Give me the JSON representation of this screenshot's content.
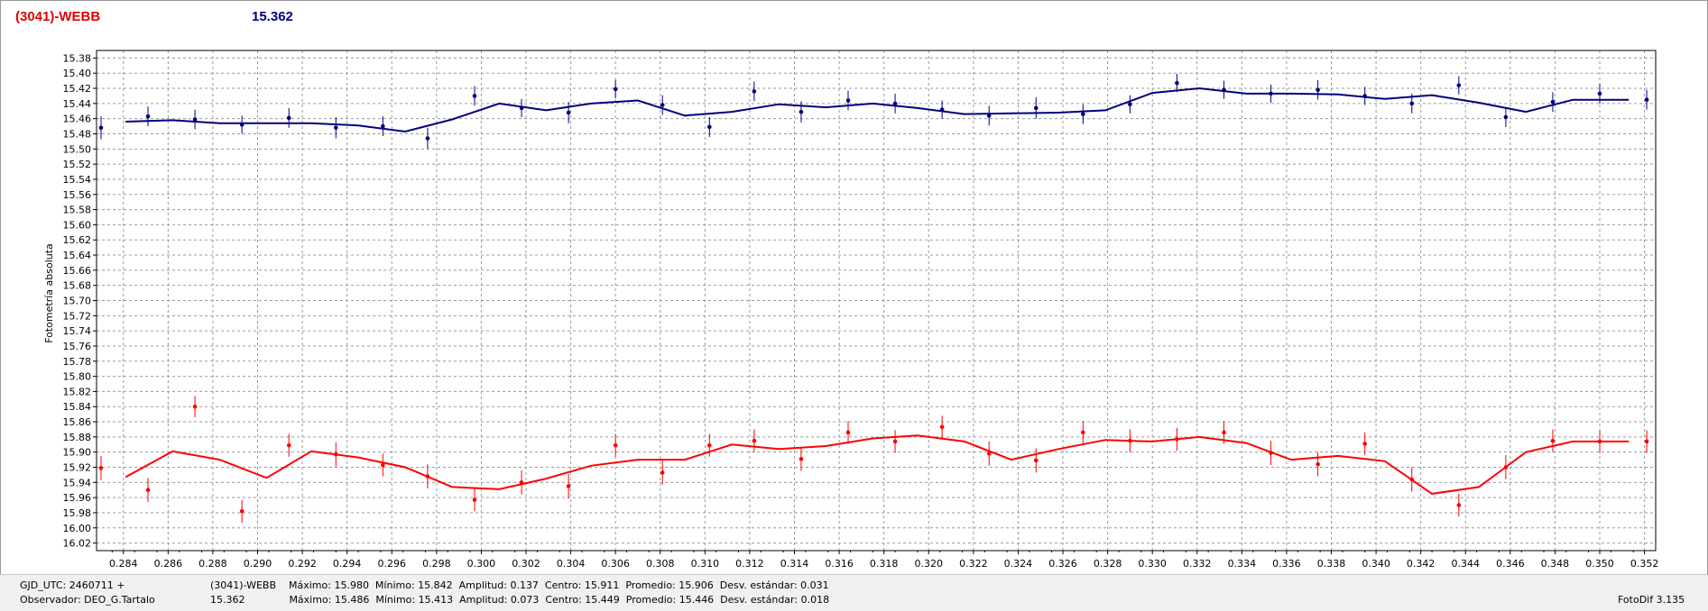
{
  "header": {
    "left_title": "(3041)-WEBB",
    "right_title": "15.362",
    "left_color": "#e00000",
    "right_color": "#00007f"
  },
  "chart_data": {
    "type": "scatter",
    "ylabel": "Fotometría absoluta",
    "xlim": [
      0.2828,
      0.3525
    ],
    "ylim": [
      16.03,
      15.37
    ],
    "y_reversed": true,
    "grid": true,
    "x_ticks": [
      "0.284",
      "0.286",
      "0.288",
      "0.290",
      "0.292",
      "0.294",
      "0.296",
      "0.298",
      "0.300",
      "0.302",
      "0.304",
      "0.306",
      "0.308",
      "0.310",
      "0.312",
      "0.314",
      "0.316",
      "0.318",
      "0.320",
      "0.322",
      "0.324",
      "0.326",
      "0.328",
      "0.330",
      "0.332",
      "0.334",
      "0.336",
      "0.338",
      "0.340",
      "0.342",
      "0.344",
      "0.346",
      "0.348",
      "0.350",
      "0.352"
    ],
    "y_ticks": [
      "15.38",
      "15.40",
      "15.42",
      "15.44",
      "15.46",
      "15.48",
      "15.50",
      "15.52",
      "15.54",
      "15.56",
      "15.58",
      "15.60",
      "15.62",
      "15.64",
      "15.66",
      "15.68",
      "15.70",
      "15.72",
      "15.74",
      "15.76",
      "15.78",
      "15.80",
      "15.82",
      "15.84",
      "15.86",
      "15.88",
      "15.90",
      "15.92",
      "15.94",
      "15.96",
      "15.98",
      "16.00",
      "16.02"
    ],
    "series": [
      {
        "color": "#00007f",
        "points": [
          [
            0.283,
            15.472,
            0.015
          ],
          [
            0.2851,
            15.457,
            0.013
          ],
          [
            0.2872,
            15.461,
            0.013
          ],
          [
            0.2893,
            15.468,
            0.012
          ],
          [
            0.2914,
            15.459,
            0.013
          ],
          [
            0.2935,
            15.472,
            0.014
          ],
          [
            0.2956,
            15.47,
            0.013
          ],
          [
            0.2976,
            15.486,
            0.014
          ],
          [
            0.2997,
            15.43,
            0.013
          ],
          [
            0.3018,
            15.446,
            0.012
          ],
          [
            0.3039,
            15.452,
            0.014
          ],
          [
            0.306,
            15.421,
            0.012
          ],
          [
            0.3081,
            15.442,
            0.013
          ],
          [
            0.3102,
            15.471,
            0.013
          ],
          [
            0.3122,
            15.424,
            0.013
          ],
          [
            0.3143,
            15.451,
            0.014
          ],
          [
            0.3164,
            15.436,
            0.013
          ],
          [
            0.3185,
            15.44,
            0.013
          ],
          [
            0.3206,
            15.448,
            0.012
          ],
          [
            0.3227,
            15.456,
            0.013
          ],
          [
            0.3248,
            15.446,
            0.014
          ],
          [
            0.3269,
            15.454,
            0.013
          ],
          [
            0.329,
            15.441,
            0.012
          ],
          [
            0.3311,
            15.413,
            0.012
          ],
          [
            0.3332,
            15.422,
            0.012
          ],
          [
            0.3353,
            15.427,
            0.012
          ],
          [
            0.3374,
            15.422,
            0.013
          ],
          [
            0.3395,
            15.43,
            0.012
          ],
          [
            0.3416,
            15.44,
            0.013
          ],
          [
            0.3437,
            15.416,
            0.012
          ],
          [
            0.3458,
            15.458,
            0.013
          ],
          [
            0.3479,
            15.438,
            0.013
          ],
          [
            0.35,
            15.427,
            0.013
          ],
          [
            0.3521,
            15.435,
            0.013
          ]
        ],
        "smooth": [
          [
            0.2841,
            15.464
          ],
          [
            0.2862,
            15.462
          ],
          [
            0.2883,
            15.466
          ],
          [
            0.2904,
            15.466
          ],
          [
            0.2924,
            15.466
          ],
          [
            0.2945,
            15.469
          ],
          [
            0.2966,
            15.477
          ],
          [
            0.2987,
            15.461
          ],
          [
            0.3008,
            15.44
          ],
          [
            0.3029,
            15.449
          ],
          [
            0.3049,
            15.44
          ],
          [
            0.307,
            15.436
          ],
          [
            0.3091,
            15.456
          ],
          [
            0.3112,
            15.451
          ],
          [
            0.3133,
            15.441
          ],
          [
            0.3154,
            15.445
          ],
          [
            0.3175,
            15.44
          ],
          [
            0.3195,
            15.446
          ],
          [
            0.3216,
            15.454
          ],
          [
            0.3237,
            15.453
          ],
          [
            0.3258,
            15.452
          ],
          [
            0.3279,
            15.449
          ],
          [
            0.33,
            15.426
          ],
          [
            0.3321,
            15.42
          ],
          [
            0.3342,
            15.427
          ],
          [
            0.3362,
            15.427
          ],
          [
            0.3383,
            15.428
          ],
          [
            0.3404,
            15.434
          ],
          [
            0.3425,
            15.429
          ],
          [
            0.3446,
            15.439
          ],
          [
            0.3467,
            15.451
          ],
          [
            0.3488,
            15.435
          ],
          [
            0.3508,
            15.435
          ],
          [
            0.3513,
            15.435
          ]
        ]
      },
      {
        "color": "#ff0000",
        "points": [
          [
            0.283,
            15.921,
            0.016
          ],
          [
            0.2851,
            15.95,
            0.016
          ],
          [
            0.2872,
            15.84,
            0.014
          ],
          [
            0.2893,
            15.978,
            0.015
          ],
          [
            0.2914,
            15.891,
            0.015
          ],
          [
            0.2935,
            15.903,
            0.016
          ],
          [
            0.2956,
            15.917,
            0.015
          ],
          [
            0.2976,
            15.932,
            0.016
          ],
          [
            0.2997,
            15.963,
            0.015
          ],
          [
            0.3018,
            15.94,
            0.016
          ],
          [
            0.3039,
            15.945,
            0.016
          ],
          [
            0.306,
            15.891,
            0.015
          ],
          [
            0.3081,
            15.927,
            0.016
          ],
          [
            0.3102,
            15.891,
            0.015
          ],
          [
            0.3122,
            15.885,
            0.015
          ],
          [
            0.3143,
            15.909,
            0.016
          ],
          [
            0.3164,
            15.874,
            0.015
          ],
          [
            0.3185,
            15.886,
            0.015
          ],
          [
            0.3206,
            15.867,
            0.015
          ],
          [
            0.3227,
            15.902,
            0.016
          ],
          [
            0.3248,
            15.911,
            0.016
          ],
          [
            0.3269,
            15.874,
            0.015
          ],
          [
            0.329,
            15.885,
            0.015
          ],
          [
            0.3311,
            15.883,
            0.015
          ],
          [
            0.3332,
            15.874,
            0.015
          ],
          [
            0.3353,
            15.901,
            0.016
          ],
          [
            0.3374,
            15.916,
            0.016
          ],
          [
            0.3395,
            15.889,
            0.015
          ],
          [
            0.3416,
            15.936,
            0.016
          ],
          [
            0.3437,
            15.97,
            0.015
          ],
          [
            0.3458,
            15.92,
            0.016
          ],
          [
            0.3479,
            15.885,
            0.015
          ],
          [
            0.35,
            15.886,
            0.015
          ],
          [
            0.3521,
            15.886,
            0.015
          ]
        ],
        "smooth": [
          [
            0.2841,
            15.933
          ],
          [
            0.2862,
            15.899
          ],
          [
            0.2883,
            15.91
          ],
          [
            0.2904,
            15.934
          ],
          [
            0.2924,
            15.899
          ],
          [
            0.2945,
            15.907
          ],
          [
            0.2966,
            15.92
          ],
          [
            0.2987,
            15.946
          ],
          [
            0.3008,
            15.949
          ],
          [
            0.3029,
            15.935
          ],
          [
            0.3049,
            15.918
          ],
          [
            0.307,
            15.91
          ],
          [
            0.3091,
            15.91
          ],
          [
            0.3112,
            15.89
          ],
          [
            0.3133,
            15.896
          ],
          [
            0.3154,
            15.892
          ],
          [
            0.3175,
            15.882
          ],
          [
            0.3195,
            15.878
          ],
          [
            0.3216,
            15.886
          ],
          [
            0.3237,
            15.91
          ],
          [
            0.3258,
            15.896
          ],
          [
            0.3279,
            15.884
          ],
          [
            0.33,
            15.886
          ],
          [
            0.3321,
            15.88
          ],
          [
            0.3342,
            15.888
          ],
          [
            0.3362,
            15.91
          ],
          [
            0.3383,
            15.905
          ],
          [
            0.3404,
            15.912
          ],
          [
            0.3425,
            15.955
          ],
          [
            0.3446,
            15.946
          ],
          [
            0.3467,
            15.9
          ],
          [
            0.3488,
            15.886
          ],
          [
            0.3508,
            15.886
          ],
          [
            0.3513,
            15.886
          ]
        ]
      }
    ]
  },
  "footer": {
    "left1": "GJD_UTC: 2460711 +",
    "left2": "Observador: DEO_G.Tartalo",
    "stats1": "(3041)-WEBB    Máximo: 15.980  Mínimo: 15.842  Amplitud: 0.137  Centro: 15.911  Promedio: 15.906  Desv. estándar: 0.031",
    "stats2": "15.362              Máximo: 15.486  Mínimo: 15.413  Amplitud: 0.073  Centro: 15.449  Promedio: 15.446  Desv. estándar: 0.018",
    "version": "FotoDif 3.135"
  }
}
